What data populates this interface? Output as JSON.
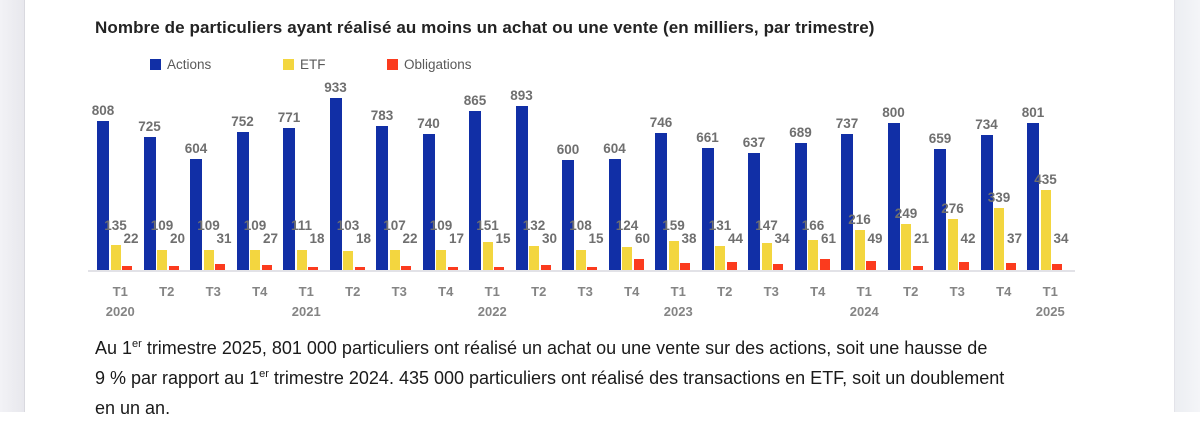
{
  "chart_data": {
    "type": "bar",
    "title": "Nombre de particuliers ayant réalisé au moins un achat ou une vente (en milliers, par trimestre)",
    "legend_position": "top",
    "grid": false,
    "value_axis_visible": false,
    "categories": [
      "T1 2020",
      "T2 2020",
      "T3 2020",
      "T4 2020",
      "T1 2021",
      "T2 2021",
      "T3 2021",
      "T4 2021",
      "T1 2022",
      "T2 2022",
      "T3 2022",
      "T4 2022",
      "T1 2023",
      "T2 2023",
      "T3 2023",
      "T4 2023",
      "T1 2024",
      "T2 2024",
      "T3 2024",
      "T4 2024",
      "T1 2025"
    ],
    "x_tick_labels": [
      "T1",
      "T2",
      "T3",
      "T4",
      "T1",
      "T2",
      "T3",
      "T4",
      "T1",
      "T2",
      "T3",
      "T4",
      "T1",
      "T2",
      "T3",
      "T4",
      "T1",
      "T2",
      "T3",
      "T4",
      "T1"
    ],
    "year_labels": {
      "0": "2020",
      "4": "2021",
      "8": "2022",
      "12": "2023",
      "16": "2024",
      "20": "2025"
    },
    "series": [
      {
        "name": "Actions",
        "color": "#112fa6",
        "values": [
          808,
          725,
          604,
          752,
          771,
          933,
          783,
          740,
          865,
          893,
          600,
          604,
          746,
          661,
          637,
          689,
          737,
          800,
          659,
          734,
          801
        ]
      },
      {
        "name": "ETF",
        "color": "#f3d63f",
        "values": [
          135,
          109,
          109,
          109,
          111,
          103,
          107,
          109,
          151,
          132,
          108,
          124,
          159,
          131,
          147,
          166,
          216,
          249,
          276,
          339,
          435
        ]
      },
      {
        "name": "Obligations",
        "color": "#fb3b1e",
        "values": [
          22,
          20,
          31,
          27,
          18,
          18,
          22,
          17,
          15,
          30,
          15,
          60,
          38,
          44,
          34,
          61,
          49,
          21,
          42,
          37,
          34
        ]
      }
    ],
    "ylim": [
      0,
      1000
    ]
  },
  "colors": {
    "actions": "#112fa6",
    "etf": "#f3d63f",
    "obligations": "#fb3b1e",
    "value_label": "#6f6f6f",
    "axis_label": "#848484"
  },
  "footer": {
    "lines": [
      {
        "pre": "Au 1",
        "sup": "er",
        "post": " trimestre 2025, 801 000 particuliers ont réalisé un achat ou une vente sur des actions, soit une hausse de"
      },
      {
        "pre": "9 % par rapport au 1",
        "sup": "er",
        "post": " trimestre 2024. 435 000 particuliers ont réalisé des transactions en ETF, soit un doublement"
      },
      {
        "pre": "en un an.",
        "sup": "",
        "post": ""
      }
    ]
  }
}
